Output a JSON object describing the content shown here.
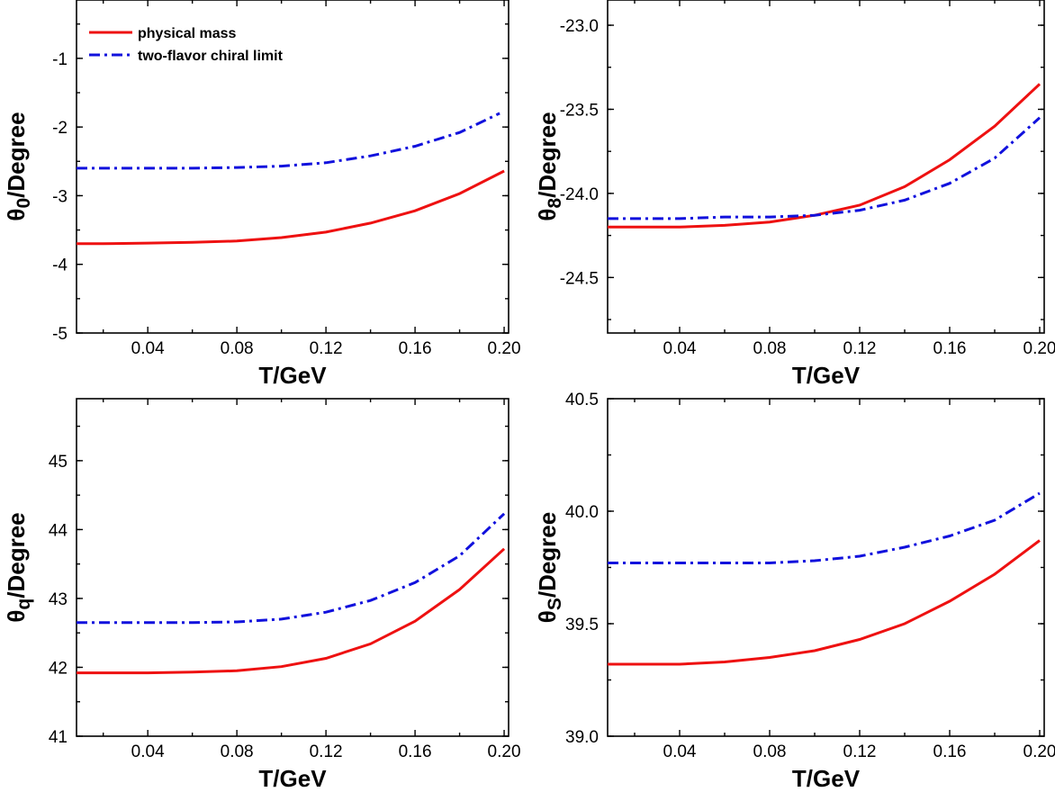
{
  "chart_data": [
    {
      "type": "line",
      "xlabel": "T/GeV",
      "ylabel_main": "θ",
      "ylabel_sub": "0",
      "ylabel_tail": "/Degree",
      "xlim": [
        0.008,
        0.202
      ],
      "ylim": [
        -5,
        -0.15
      ],
      "xticks": [
        "0.04",
        "0.08",
        "0.12",
        "0.16",
        "0.20"
      ],
      "yticks": [
        "-5",
        "-4",
        "-3",
        "-2",
        "-1"
      ],
      "legend": "top-left",
      "series": [
        {
          "name": "physical mass",
          "color": "#ee1111",
          "dash": "solid",
          "x": [
            0.008,
            0.02,
            0.04,
            0.06,
            0.08,
            0.1,
            0.12,
            0.14,
            0.16,
            0.18,
            0.2
          ],
          "y": [
            -3.7,
            -3.7,
            -3.69,
            -3.68,
            -3.66,
            -3.61,
            -3.53,
            -3.4,
            -3.22,
            -2.97,
            -2.64
          ]
        },
        {
          "name": "two-flavor chiral limit",
          "color": "#1111dd",
          "dash": "dashdot",
          "x": [
            0.008,
            0.02,
            0.04,
            0.06,
            0.08,
            0.1,
            0.12,
            0.14,
            0.16,
            0.18,
            0.198
          ],
          "y": [
            -2.6,
            -2.6,
            -2.6,
            -2.6,
            -2.59,
            -2.57,
            -2.52,
            -2.42,
            -2.28,
            -2.08,
            -1.8
          ]
        }
      ]
    },
    {
      "type": "line",
      "xlabel": "T/GeV",
      "ylabel_main": "θ",
      "ylabel_sub": "8",
      "ylabel_tail": "/Degree",
      "xlim": [
        0.008,
        0.202
      ],
      "ylim": [
        -24.83,
        -22.85
      ],
      "xticks": [
        "0.04",
        "0.08",
        "0.12",
        "0.16",
        "0.20"
      ],
      "yticks": [
        "-24.5",
        "-24.0",
        "-23.5",
        "-23.0"
      ],
      "legend": "none",
      "series": [
        {
          "name": "physical mass",
          "color": "#ee1111",
          "dash": "solid",
          "x": [
            0.008,
            0.02,
            0.04,
            0.06,
            0.08,
            0.1,
            0.12,
            0.14,
            0.16,
            0.18,
            0.2
          ],
          "y": [
            -24.2,
            -24.2,
            -24.2,
            -24.19,
            -24.17,
            -24.13,
            -24.07,
            -23.96,
            -23.8,
            -23.6,
            -23.35
          ]
        },
        {
          "name": "two-flavor chiral limit",
          "color": "#1111dd",
          "dash": "dashdot",
          "x": [
            0.008,
            0.02,
            0.04,
            0.06,
            0.08,
            0.1,
            0.12,
            0.14,
            0.16,
            0.18,
            0.2
          ],
          "y": [
            -24.15,
            -24.15,
            -24.15,
            -24.14,
            -24.14,
            -24.13,
            -24.1,
            -24.04,
            -23.94,
            -23.79,
            -23.55
          ]
        }
      ]
    },
    {
      "type": "line",
      "xlabel": "T/GeV",
      "ylabel_main": "θ",
      "ylabel_sub": "q",
      "ylabel_tail": "/Degree",
      "xlim": [
        0.008,
        0.202
      ],
      "ylim": [
        41,
        45.9
      ],
      "xticks": [
        "0.04",
        "0.08",
        "0.12",
        "0.16",
        "0.20"
      ],
      "yticks": [
        "41",
        "42",
        "43",
        "44",
        "45"
      ],
      "legend": "none",
      "series": [
        {
          "name": "physical mass",
          "color": "#ee1111",
          "dash": "solid",
          "x": [
            0.008,
            0.02,
            0.04,
            0.06,
            0.08,
            0.1,
            0.12,
            0.14,
            0.16,
            0.18,
            0.2
          ],
          "y": [
            41.92,
            41.92,
            41.92,
            41.93,
            41.95,
            42.01,
            42.13,
            42.34,
            42.67,
            43.13,
            43.72
          ]
        },
        {
          "name": "two-flavor chiral limit",
          "color": "#1111dd",
          "dash": "dashdot",
          "x": [
            0.008,
            0.02,
            0.04,
            0.06,
            0.08,
            0.1,
            0.12,
            0.14,
            0.16,
            0.18,
            0.2
          ],
          "y": [
            42.65,
            42.65,
            42.65,
            42.65,
            42.66,
            42.7,
            42.8,
            42.97,
            43.23,
            43.62,
            44.23
          ]
        }
      ]
    },
    {
      "type": "line",
      "xlabel": "T/GeV",
      "ylabel_main": "θ",
      "ylabel_sub": "S",
      "ylabel_tail": "/Degree",
      "xlim": [
        0.008,
        0.202
      ],
      "ylim": [
        39,
        40.5
      ],
      "xticks": [
        "0.04",
        "0.08",
        "0.12",
        "0.16",
        "0.20"
      ],
      "yticks": [
        "39.0",
        "39.5",
        "40.0",
        "40.5"
      ],
      "legend": "none",
      "series": [
        {
          "name": "physical mass",
          "color": "#ee1111",
          "dash": "solid",
          "x": [
            0.008,
            0.02,
            0.04,
            0.06,
            0.08,
            0.1,
            0.12,
            0.14,
            0.16,
            0.18,
            0.2
          ],
          "y": [
            39.32,
            39.32,
            39.32,
            39.33,
            39.35,
            39.38,
            39.43,
            39.5,
            39.6,
            39.72,
            39.87
          ]
        },
        {
          "name": "two-flavor chiral limit",
          "color": "#1111dd",
          "dash": "dashdot",
          "x": [
            0.008,
            0.02,
            0.04,
            0.06,
            0.08,
            0.1,
            0.12,
            0.14,
            0.16,
            0.18,
            0.2
          ],
          "y": [
            39.77,
            39.77,
            39.77,
            39.77,
            39.77,
            39.78,
            39.8,
            39.84,
            39.89,
            39.96,
            40.08
          ]
        }
      ]
    }
  ]
}
